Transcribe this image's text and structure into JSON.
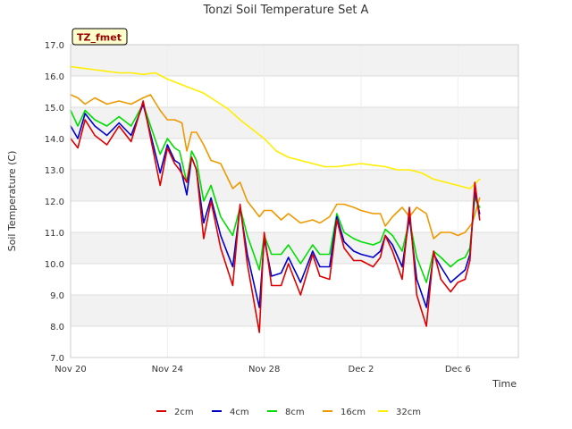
{
  "chart_data": {
    "type": "line",
    "title": "Tonzi Soil Temperature Set A",
    "xlabel": "Time",
    "ylabel": "Soil Temperature (C)",
    "ylim": [
      7.0,
      17.0
    ],
    "xlim_days": [
      0,
      18.5
    ],
    "yticks": [
      "7.0",
      "8.0",
      "9.0",
      "10.0",
      "11.0",
      "12.0",
      "13.0",
      "14.0",
      "15.0",
      "16.0",
      "17.0"
    ],
    "xticks": [
      {
        "day": 0,
        "label": "Nov 20"
      },
      {
        "day": 4,
        "label": "Nov 24"
      },
      {
        "day": 8,
        "label": "Nov 28"
      },
      {
        "day": 12,
        "label": "Dec 2"
      },
      {
        "day": 16,
        "label": "Dec 6"
      }
    ],
    "grid": true,
    "legend_position": "bottom",
    "annotation": "TZ_fmet",
    "series": [
      {
        "name": "2cm",
        "color": "#dd0000",
        "x": [
          0,
          0.3,
          0.6,
          1.0,
          1.5,
          2.0,
          2.5,
          3.0,
          3.7,
          4.0,
          4.3,
          4.5,
          4.8,
          5.0,
          5.2,
          5.5,
          5.8,
          6.2,
          6.7,
          7.0,
          7.3,
          7.8,
          8.0,
          8.3,
          8.7,
          9.0,
          9.5,
          10.0,
          10.3,
          10.7,
          11.0,
          11.3,
          11.7,
          12.0,
          12.5,
          12.8,
          13.0,
          13.3,
          13.7,
          14.0,
          14.3,
          14.7,
          15.0,
          15.3,
          15.7,
          16.0,
          16.3,
          16.5,
          16.7,
          16.9
        ],
        "values": [
          14.0,
          13.7,
          14.6,
          14.1,
          13.8,
          14.4,
          13.9,
          15.2,
          12.5,
          13.7,
          13.2,
          13.0,
          12.6,
          13.4,
          13.0,
          10.8,
          12.0,
          10.5,
          9.3,
          11.9,
          10.0,
          7.8,
          11.0,
          9.3,
          9.3,
          10.0,
          9.0,
          10.3,
          9.6,
          9.5,
          11.4,
          10.5,
          10.1,
          10.1,
          9.9,
          10.2,
          10.9,
          10.4,
          9.5,
          11.8,
          9.0,
          8.0,
          10.4,
          9.5,
          9.1,
          9.4,
          9.5,
          10.1,
          12.6,
          11.4
        ]
      },
      {
        "name": "4cm",
        "color": "#0000cc",
        "x": [
          0,
          0.3,
          0.6,
          1.0,
          1.5,
          2.0,
          2.5,
          3.0,
          3.7,
          4.0,
          4.3,
          4.5,
          4.8,
          5.0,
          5.2,
          5.5,
          5.8,
          6.2,
          6.7,
          7.0,
          7.3,
          7.8,
          8.0,
          8.3,
          8.7,
          9.0,
          9.5,
          10.0,
          10.3,
          10.7,
          11.0,
          11.3,
          11.7,
          12.0,
          12.5,
          12.8,
          13.0,
          13.3,
          13.7,
          14.0,
          14.3,
          14.7,
          15.0,
          15.3,
          15.7,
          16.0,
          16.3,
          16.5,
          16.7,
          16.9
        ],
        "values": [
          14.4,
          14.0,
          14.8,
          14.4,
          14.1,
          14.5,
          14.1,
          15.1,
          12.9,
          13.8,
          13.3,
          13.2,
          12.2,
          13.4,
          13.0,
          11.3,
          12.1,
          10.9,
          9.9,
          11.8,
          10.3,
          8.6,
          10.8,
          9.6,
          9.7,
          10.2,
          9.4,
          10.4,
          9.9,
          9.9,
          11.5,
          10.7,
          10.4,
          10.3,
          10.2,
          10.4,
          10.9,
          10.6,
          9.9,
          11.5,
          9.5,
          8.6,
          10.3,
          9.9,
          9.4,
          9.6,
          9.8,
          10.3,
          12.3,
          11.6
        ]
      },
      {
        "name": "8cm",
        "color": "#00dd00",
        "x": [
          0,
          0.3,
          0.6,
          1.0,
          1.5,
          2.0,
          2.5,
          3.0,
          3.7,
          4.0,
          4.3,
          4.5,
          4.8,
          5.0,
          5.2,
          5.5,
          5.8,
          6.2,
          6.7,
          7.0,
          7.3,
          7.8,
          8.0,
          8.3,
          8.7,
          9.0,
          9.5,
          10.0,
          10.3,
          10.7,
          11.0,
          11.3,
          11.7,
          12.0,
          12.5,
          12.8,
          13.0,
          13.3,
          13.7,
          14.0,
          14.3,
          14.7,
          15.0,
          15.3,
          15.7,
          16.0,
          16.3,
          16.5,
          16.7,
          16.9
        ],
        "values": [
          14.9,
          14.4,
          14.9,
          14.6,
          14.4,
          14.7,
          14.4,
          15.1,
          13.5,
          14.0,
          13.7,
          13.6,
          12.6,
          13.6,
          13.3,
          12.0,
          12.5,
          11.5,
          10.9,
          11.8,
          10.9,
          9.8,
          10.9,
          10.3,
          10.3,
          10.6,
          10.0,
          10.6,
          10.3,
          10.3,
          11.6,
          11.0,
          10.8,
          10.7,
          10.6,
          10.7,
          11.1,
          10.9,
          10.4,
          11.4,
          10.2,
          9.4,
          10.4,
          10.2,
          9.9,
          10.1,
          10.2,
          10.5,
          12.1,
          11.8
        ]
      },
      {
        "name": "16cm",
        "color": "#ee9900",
        "x": [
          0,
          0.3,
          0.6,
          1.0,
          1.5,
          2.0,
          2.5,
          3.0,
          3.3,
          3.7,
          4.0,
          4.3,
          4.6,
          4.8,
          5.0,
          5.2,
          5.5,
          5.8,
          6.2,
          6.7,
          7.0,
          7.3,
          7.8,
          8.0,
          8.3,
          8.7,
          9.0,
          9.5,
          10.0,
          10.3,
          10.7,
          11.0,
          11.3,
          11.7,
          12.0,
          12.5,
          12.8,
          13.0,
          13.3,
          13.7,
          14.0,
          14.3,
          14.7,
          15.0,
          15.3,
          15.7,
          16.0,
          16.3,
          16.6,
          16.9
        ],
        "values": [
          15.4,
          15.3,
          15.1,
          15.3,
          15.1,
          15.2,
          15.1,
          15.3,
          15.4,
          14.9,
          14.6,
          14.6,
          14.5,
          13.6,
          14.2,
          14.2,
          13.8,
          13.3,
          13.2,
          12.4,
          12.6,
          12.0,
          11.5,
          11.7,
          11.7,
          11.4,
          11.6,
          11.3,
          11.4,
          11.3,
          11.5,
          11.9,
          11.9,
          11.8,
          11.7,
          11.6,
          11.6,
          11.2,
          11.5,
          11.8,
          11.5,
          11.8,
          11.6,
          10.8,
          11.0,
          11.0,
          10.9,
          11.0,
          11.3,
          12.1
        ]
      },
      {
        "name": "32cm",
        "color": "#ffee00",
        "x": [
          0,
          0.5,
          1.0,
          1.5,
          2.0,
          2.5,
          3.0,
          3.5,
          4.0,
          4.5,
          5.0,
          5.5,
          6.0,
          6.5,
          7.0,
          7.5,
          8.0,
          8.5,
          9.0,
          9.5,
          10.0,
          10.5,
          11.0,
          11.5,
          12.0,
          12.5,
          13.0,
          13.5,
          14.0,
          14.5,
          15.0,
          15.5,
          16.0,
          16.5,
          16.9
        ],
        "values": [
          16.3,
          16.25,
          16.2,
          16.15,
          16.1,
          16.1,
          16.05,
          16.1,
          15.9,
          15.75,
          15.6,
          15.45,
          15.2,
          14.95,
          14.6,
          14.3,
          14.0,
          13.6,
          13.4,
          13.3,
          13.2,
          13.1,
          13.1,
          13.15,
          13.2,
          13.15,
          13.1,
          13.0,
          13.0,
          12.9,
          12.7,
          12.6,
          12.5,
          12.4,
          12.7
        ]
      }
    ]
  }
}
